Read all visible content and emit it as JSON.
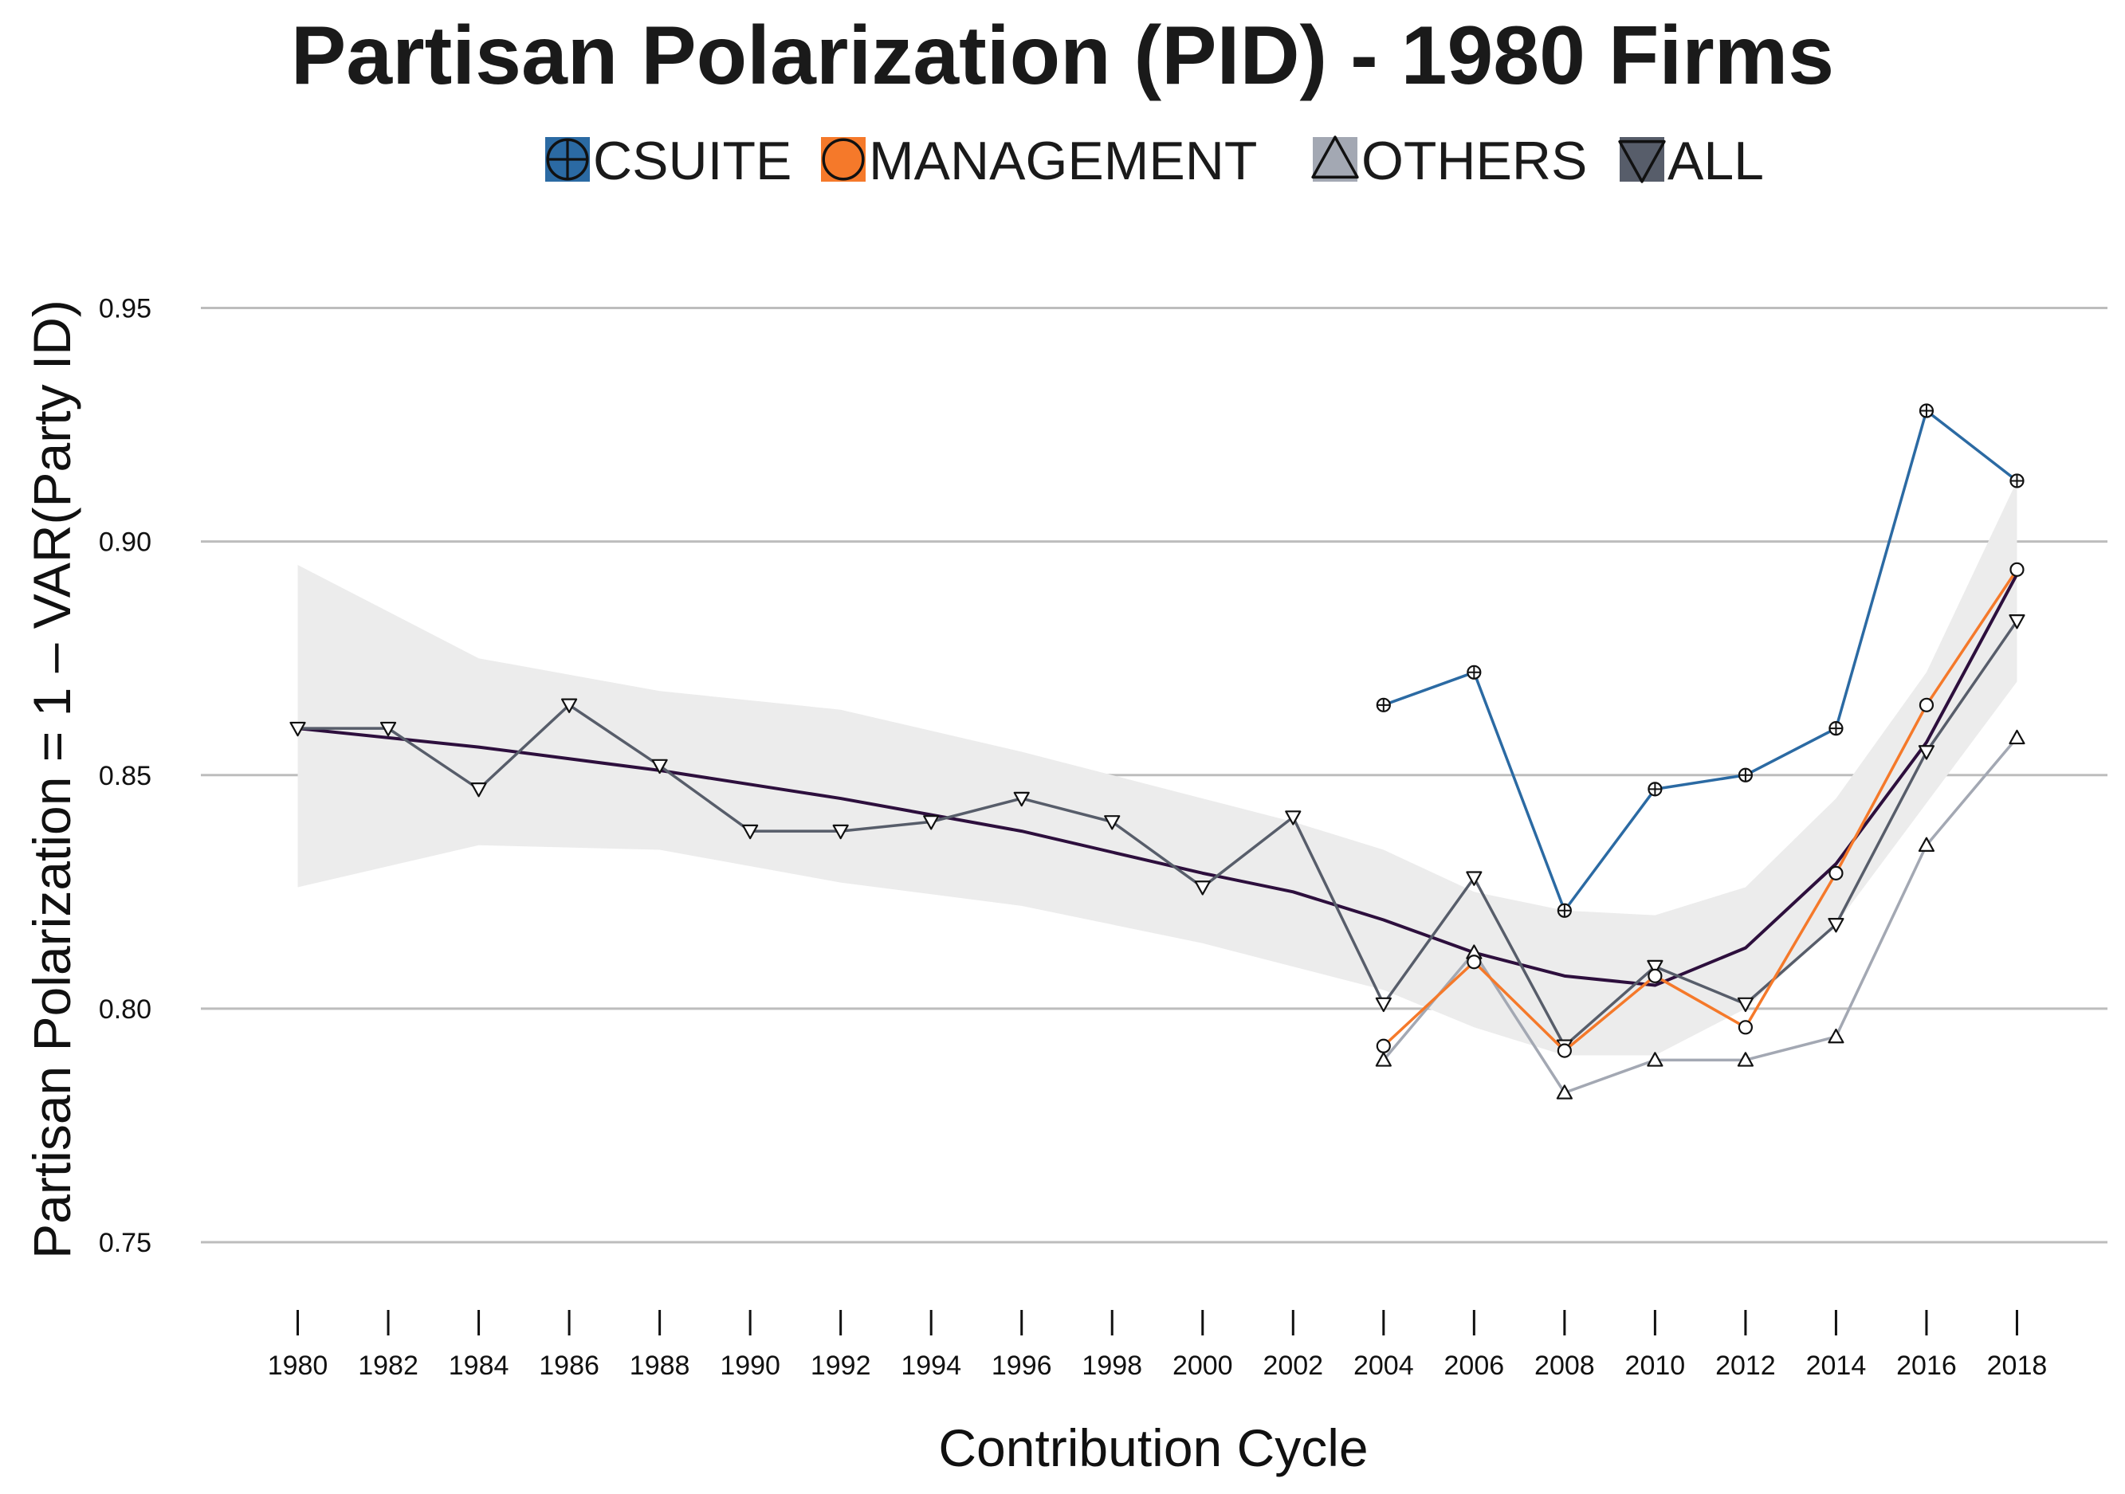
{
  "chart_data": {
    "type": "line",
    "title": "Partisan Polarization (PID) - 1980 Firms",
    "xlabel": "Contribution Cycle",
    "ylabel": "Partisan Polarization = 1 – VAR(Party ID)",
    "x": [
      1980,
      1982,
      1984,
      1986,
      1988,
      1990,
      1992,
      1994,
      1996,
      1998,
      2000,
      2002,
      2004,
      2006,
      2008,
      2010,
      2012,
      2014,
      2016,
      2018
    ],
    "x_tick_labels": [
      "1980",
      "1982",
      "1984",
      "1986",
      "1988",
      "1990",
      "1992",
      "1994",
      "1996",
      "1998",
      "2000",
      "2002",
      "2004",
      "2006",
      "2008",
      "2010",
      "2012",
      "2014",
      "2016",
      "2018"
    ],
    "y_ticks": [
      0.75,
      0.8,
      0.85,
      0.9,
      0.95
    ],
    "y_tick_labels": [
      "0.75",
      "0.80",
      "0.85",
      "0.90",
      "0.95"
    ],
    "ylim": [
      0.743,
      0.975
    ],
    "grid": "horizontal",
    "legend_position": "top",
    "series": [
      {
        "name": "CSUITE",
        "color": "#2b6aa3",
        "marker": "circle-plus",
        "x": [
          2004,
          2006,
          2008,
          2010,
          2012,
          2014,
          2016,
          2018
        ],
        "values": [
          0.865,
          0.872,
          0.821,
          0.847,
          0.85,
          0.86,
          0.928,
          0.913
        ]
      },
      {
        "name": "MANAGEMENT",
        "color": "#f5792a",
        "marker": "circle",
        "x": [
          2004,
          2006,
          2008,
          2010,
          2012,
          2014,
          2016,
          2018
        ],
        "values": [
          0.792,
          0.81,
          0.791,
          0.807,
          0.796,
          0.829,
          0.865,
          0.894
        ]
      },
      {
        "name": "OTHERS",
        "color": "#a3a8b3",
        "marker": "triangle-up",
        "x": [
          2004,
          2006,
          2008,
          2010,
          2012,
          2014,
          2016,
          2018
        ],
        "values": [
          0.789,
          0.812,
          0.782,
          0.789,
          0.789,
          0.794,
          0.835,
          0.858
        ]
      },
      {
        "name": "ALL",
        "color": "#575d6a",
        "marker": "triangle-down",
        "x": [
          1980,
          1982,
          1984,
          1986,
          1988,
          1990,
          1992,
          1994,
          1996,
          1998,
          2000,
          2002,
          2004,
          2006,
          2008,
          2010,
          2012,
          2014,
          2016,
          2018
        ],
        "values": [
          0.86,
          0.86,
          0.847,
          0.865,
          0.852,
          0.838,
          0.838,
          0.84,
          0.845,
          0.84,
          0.826,
          0.841,
          0.801,
          0.828,
          0.792,
          0.809,
          0.801,
          0.818,
          0.855,
          0.883
        ]
      }
    ],
    "trend": {
      "color": "#2d0f3d",
      "band_color": "#ececec",
      "x": [
        1980,
        1984,
        1988,
        1992,
        1996,
        2000,
        2002,
        2004,
        2006,
        2008,
        2010,
        2012,
        2014,
        2016,
        2018
      ],
      "fit": [
        0.86,
        0.856,
        0.851,
        0.845,
        0.838,
        0.829,
        0.825,
        0.819,
        0.812,
        0.807,
        0.805,
        0.813,
        0.831,
        0.857,
        0.893
      ],
      "lower": [
        0.826,
        0.835,
        0.834,
        0.827,
        0.822,
        0.814,
        0.809,
        0.804,
        0.796,
        0.79,
        0.79,
        0.8,
        0.818,
        0.844,
        0.87
      ],
      "upper": [
        0.895,
        0.875,
        0.868,
        0.864,
        0.855,
        0.845,
        0.84,
        0.834,
        0.825,
        0.821,
        0.82,
        0.826,
        0.845,
        0.872,
        0.913
      ]
    }
  }
}
